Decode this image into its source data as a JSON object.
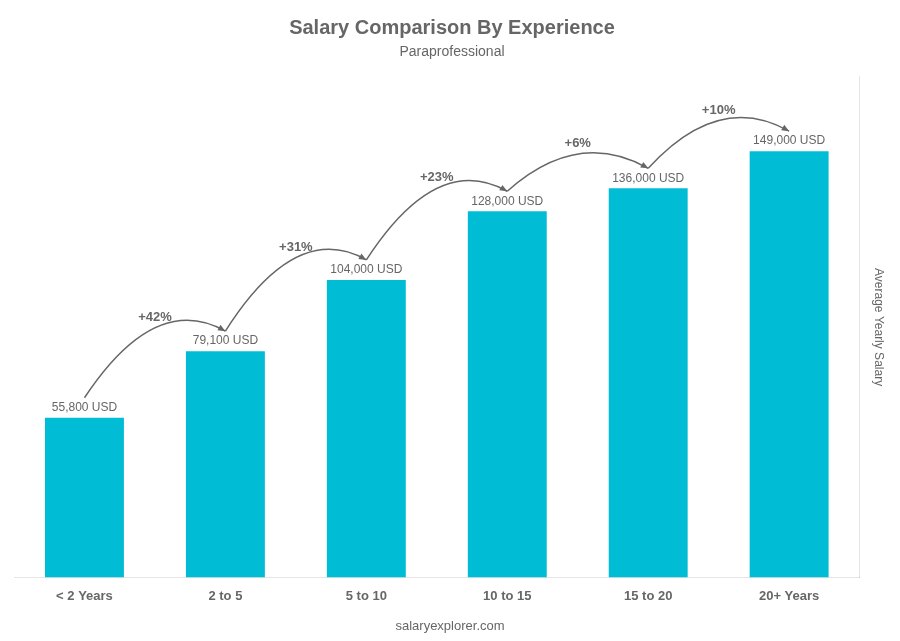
{
  "chart_data": {
    "type": "bar",
    "title": "Salary Comparison By Experience",
    "subtitle": "Paraprofessional",
    "categories": [
      "< 2 Years",
      "2 to 5",
      "5 to 10",
      "10 to 15",
      "15 to 20",
      "20+ Years"
    ],
    "values": [
      55800,
      79100,
      104000,
      128000,
      136000,
      149000
    ],
    "value_labels": [
      "55,800 USD",
      "79,100 USD",
      "104,000 USD",
      "128,000 USD",
      "136,000 USD",
      "149,000 USD"
    ],
    "data_labels": true,
    "color": "#00bcd4",
    "ylabel": "Average Yearly Salary",
    "ylim": [
      0,
      175000
    ],
    "tick_labels": "x",
    "grid": false,
    "annotations": [
      "+42%",
      "+31%",
      "+23%",
      "+6%",
      "+10%"
    ],
    "footer": "salaryexplorer.com"
  }
}
